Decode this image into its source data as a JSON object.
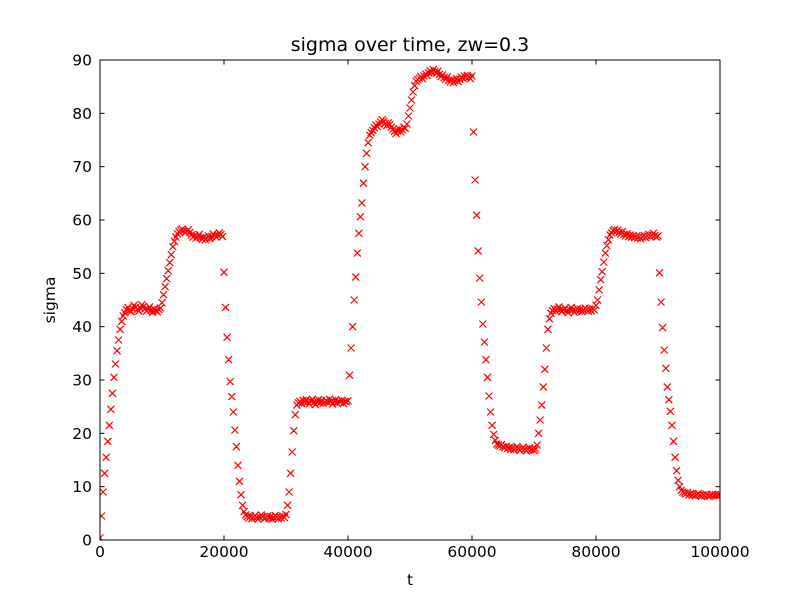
{
  "chart_data": {
    "type": "scatter",
    "title": "sigma over time, zw=0.3",
    "xlabel": "t",
    "ylabel": "sigma",
    "xlim": [
      0,
      100000
    ],
    "ylim": [
      0,
      90
    ],
    "xticks": [
      0,
      20000,
      40000,
      60000,
      80000,
      100000
    ],
    "yticks": [
      0,
      10,
      20,
      30,
      40,
      50,
      60,
      70,
      80,
      90
    ],
    "grid": false,
    "legend": "none",
    "marker": "x",
    "marker_color": "#ff0000",
    "axes_color": "#000000",
    "background_color": "#ffffff",
    "series": [
      {
        "name": "sigma",
        "x_start": 0,
        "x_step": 250,
        "y": [
          0.4,
          4.5,
          9.0,
          12.5,
          15.5,
          18.5,
          21.5,
          24.5,
          27.5,
          30.5,
          33.0,
          35.5,
          37.5,
          39.5,
          41.0,
          42.0,
          42.6,
          43.2,
          43.6,
          43.0,
          42.8,
          43.4,
          44.0,
          43.6,
          43.2,
          42.9,
          43.5,
          44.1,
          43.8,
          43.3,
          42.9,
          43.2,
          43.7,
          43.1,
          42.7,
          43.3,
          43.0,
          42.8,
          43.2,
          43.5,
          44.5,
          46.0,
          47.5,
          49.0,
          50.5,
          52.0,
          53.5,
          55.0,
          56.0,
          56.8,
          57.4,
          57.8,
          58.1,
          58.3,
          58.0,
          57.6,
          57.9,
          58.2,
          57.7,
          57.2,
          56.8,
          57.1,
          56.6,
          56.9,
          57.3,
          56.7,
          56.4,
          56.8,
          56.3,
          56.6,
          57.0,
          56.5,
          56.9,
          57.4,
          57.1,
          56.8,
          57.2,
          57.6,
          57.3,
          56.9,
          50.2,
          43.6,
          38.0,
          33.8,
          29.7,
          26.9,
          24.0,
          20.6,
          17.5,
          14.0,
          11.0,
          8.5,
          6.5,
          5.3,
          4.7,
          4.4,
          4.1,
          4.5,
          4.0,
          4.3,
          4.6,
          4.2,
          3.9,
          4.3,
          4.7,
          4.4,
          4.0,
          4.2,
          4.5,
          4.1,
          4.4,
          3.9,
          4.2,
          4.6,
          4.3,
          4.0,
          4.4,
          4.1,
          4.5,
          4.2,
          4.8,
          6.5,
          9.0,
          12.5,
          16.5,
          20.5,
          23.5,
          25.3,
          25.7,
          26.0,
          25.6,
          26.2,
          25.8,
          26.3,
          25.9,
          25.5,
          26.1,
          26.4,
          25.8,
          25.4,
          26.0,
          26.3,
          25.7,
          26.1,
          25.6,
          25.9,
          26.2,
          25.8,
          26.4,
          26.0,
          25.5,
          25.9,
          26.3,
          25.7,
          26.1,
          25.8,
          26.2,
          25.6,
          26.0,
          25.9,
          26.1,
          30.9,
          36.0,
          40.0,
          45.0,
          49.3,
          53.8,
          57.5,
          60.6,
          63.2,
          66.9,
          70.0,
          72.5,
          74.5,
          75.9,
          76.4,
          76.8,
          77.3,
          77.8,
          77.5,
          78.0,
          78.4,
          78.8,
          78.5,
          78.1,
          77.7,
          78.2,
          77.9,
          77.4,
          77.0,
          76.6,
          76.2,
          76.7,
          77.1,
          76.5,
          76.9,
          77.4,
          77.2,
          78.0,
          79.5,
          81.0,
          82.5,
          84.0,
          85.2,
          86.0,
          86.3,
          86.6,
          86.9,
          86.5,
          87.0,
          87.4,
          87.1,
          87.6,
          88.0,
          87.7,
          88.2,
          87.8,
          87.5,
          87.9,
          87.3,
          86.9,
          87.2,
          86.7,
          86.4,
          86.8,
          86.2,
          85.9,
          86.3,
          85.8,
          86.1,
          86.5,
          86.0,
          86.4,
          86.8,
          86.6,
          87.0,
          86.7,
          87.1,
          86.8,
          86.5,
          87.0,
          76.5,
          67.5,
          60.9,
          54.2,
          49.1,
          44.6,
          40.5,
          37.1,
          33.8,
          30.5,
          27.0,
          24.0,
          21.5,
          19.8,
          18.7,
          18.0,
          17.8,
          17.6,
          17.9,
          17.5,
          17.3,
          17.6,
          17.2,
          17.4,
          17.0,
          17.3,
          16.9,
          17.2,
          17.5,
          17.1,
          16.8,
          17.1,
          17.4,
          17.0,
          16.7,
          17.0,
          17.3,
          16.9,
          17.1,
          16.8,
          17.0,
          17.8,
          20.0,
          22.5,
          25.3,
          28.7,
          32.0,
          36.0,
          39.5,
          41.5,
          42.5,
          43.0,
          43.4,
          42.9,
          43.3,
          43.7,
          43.2,
          42.8,
          43.1,
          43.5,
          43.0,
          42.6,
          43.2,
          43.6,
          43.1,
          42.7,
          43.0,
          43.4,
          42.9,
          43.3,
          42.8,
          43.1,
          43.5,
          43.2,
          42.9,
          43.3,
          43.0,
          43.4,
          43.1,
          44.0,
          45.0,
          46.9,
          48.8,
          50.3,
          52.1,
          53.8,
          55.2,
          56.3,
          57.2,
          57.6,
          58.0,
          58.2,
          57.9,
          58.1,
          57.7,
          57.4,
          57.8,
          57.3,
          57.0,
          57.4,
          56.9,
          57.2,
          56.8,
          57.1,
          56.7,
          57.0,
          56.6,
          56.9,
          56.5,
          56.8,
          57.1,
          56.7,
          57.0,
          57.3,
          56.9,
          57.2,
          57.5,
          57.1,
          56.8,
          57.0,
          50.1,
          44.6,
          39.8,
          35.6,
          32.2,
          28.7,
          26.3,
          24.1,
          21.5,
          18.5,
          15.5,
          13.0,
          11.2,
          10.0,
          9.3,
          9.0,
          8.8,
          8.6,
          8.9,
          8.5,
          8.7,
          8.4,
          8.6,
          8.3,
          8.5,
          8.7,
          8.4,
          8.2,
          8.5,
          8.3,
          8.6,
          8.4,
          8.2,
          8.4,
          8.6,
          8.3,
          8.5,
          8.3,
          8.4,
          8.5
        ]
      }
    ]
  }
}
